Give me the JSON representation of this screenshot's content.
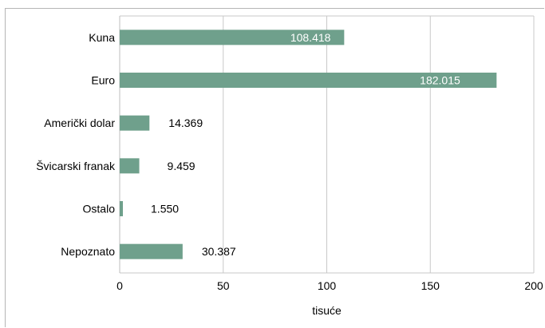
{
  "chart_data": {
    "type": "bar",
    "orientation": "horizontal",
    "categories": [
      "Kuna",
      "Euro",
      "Američki dolar",
      "Švicarski franak",
      "Ostalo",
      "Nepoznato"
    ],
    "values": [
      108.418,
      182.015,
      14.369,
      9.459,
      1.55,
      30.387
    ],
    "value_labels": [
      "108.418",
      "182.015",
      "14.369",
      "9.459",
      "1.550",
      "30.387"
    ],
    "xlabel": "tisuće",
    "ylabel": "",
    "title": "",
    "xlim": [
      0,
      200
    ],
    "xticks": [
      "0",
      "50",
      "100",
      "150",
      "200"
    ],
    "grid": true,
    "legend": "none",
    "bar_color": "#6fa08c"
  }
}
